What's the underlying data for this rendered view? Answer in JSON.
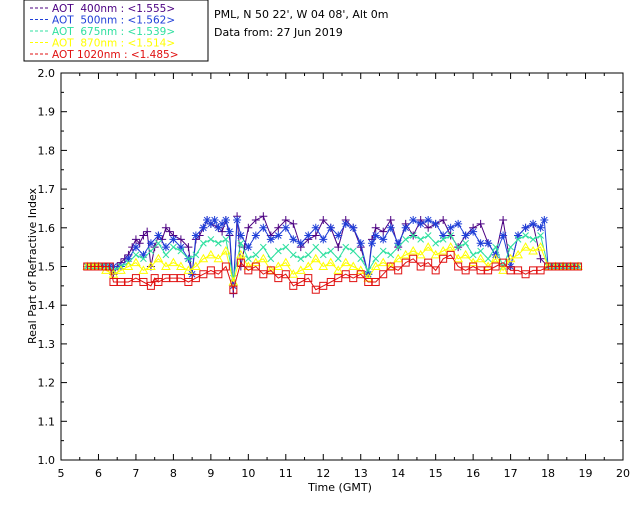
{
  "chart_data": {
    "type": "line",
    "site": "PML, N 50 22', W 04 08', Alt 0m",
    "date_text": "Data from: 27 Jun 2019",
    "xlabel": "Time (GMT)",
    "ylabel": "Real Part of Refractive Index",
    "xlim": [
      5,
      20
    ],
    "ylim": [
      1.0,
      2.0
    ],
    "xticks": [
      "5",
      "6",
      "7",
      "8",
      "9",
      "10",
      "11",
      "12",
      "13",
      "14",
      "15",
      "16",
      "17",
      "18",
      "19",
      "20"
    ],
    "yticks": [
      "1.0",
      "1.1",
      "1.2",
      "1.3",
      "1.4",
      "1.5",
      "1.6",
      "1.7",
      "1.8",
      "1.9",
      "2.0"
    ],
    "legend_position": "top-left",
    "series": [
      {
        "name": "AOT  400nm : <1.555>",
        "color": "#4b0082",
        "marker": "plus",
        "x": [
          5.7,
          5.8,
          5.9,
          6.0,
          6.1,
          6.2,
          6.3,
          6.4,
          6.5,
          6.6,
          6.7,
          6.8,
          6.9,
          7.0,
          7.1,
          7.2,
          7.3,
          7.4,
          7.5,
          7.6,
          7.7,
          7.8,
          7.9,
          8.0,
          8.2,
          8.4,
          8.5,
          8.6,
          8.7,
          8.8,
          8.9,
          9.0,
          9.2,
          9.3,
          9.4,
          9.5,
          9.6,
          9.7,
          9.8,
          9.9,
          10.0,
          10.2,
          10.4,
          10.6,
          10.8,
          11.0,
          11.2,
          11.4,
          11.6,
          11.8,
          12.0,
          12.2,
          12.4,
          12.6,
          12.8,
          13.0,
          13.2,
          13.3,
          13.4,
          13.6,
          13.8,
          14.0,
          14.2,
          14.4,
          14.6,
          14.8,
          15.0,
          15.2,
          15.4,
          15.6,
          15.8,
          16.0,
          16.2,
          16.4,
          16.6,
          16.8,
          17.0,
          17.2,
          17.4,
          17.6,
          17.8,
          18.0,
          18.1,
          18.2,
          18.3,
          18.4,
          18.5,
          18.6,
          18.7,
          18.8
        ],
        "y": [
          1.5,
          1.5,
          1.5,
          1.5,
          1.5,
          1.5,
          1.5,
          1.48,
          1.5,
          1.51,
          1.52,
          1.53,
          1.55,
          1.57,
          1.56,
          1.58,
          1.59,
          1.5,
          1.55,
          1.58,
          1.57,
          1.6,
          1.59,
          1.58,
          1.57,
          1.55,
          1.48,
          1.57,
          1.58,
          1.6,
          1.62,
          1.61,
          1.6,
          1.59,
          1.62,
          1.58,
          1.43,
          1.63,
          1.5,
          1.55,
          1.6,
          1.62,
          1.63,
          1.58,
          1.6,
          1.62,
          1.61,
          1.55,
          1.57,
          1.58,
          1.62,
          1.6,
          1.55,
          1.62,
          1.6,
          1.55,
          1.48,
          1.57,
          1.6,
          1.59,
          1.62,
          1.55,
          1.61,
          1.58,
          1.62,
          1.6,
          1.61,
          1.62,
          1.58,
          1.55,
          1.58,
          1.6,
          1.61,
          1.56,
          1.53,
          1.62,
          1.5,
          1.58,
          1.6,
          1.61,
          1.52,
          1.5,
          1.5,
          1.5,
          1.5,
          1.5,
          1.5,
          1.5,
          1.5,
          1.5
        ]
      },
      {
        "name": "AOT  500nm : <1.562>",
        "color": "#1f3fd8",
        "marker": "star",
        "x": [
          5.7,
          5.8,
          5.9,
          6.0,
          6.1,
          6.2,
          6.3,
          6.4,
          6.6,
          6.8,
          7.0,
          7.2,
          7.4,
          7.6,
          7.8,
          8.0,
          8.2,
          8.4,
          8.5,
          8.6,
          8.8,
          8.9,
          9.0,
          9.1,
          9.2,
          9.3,
          9.4,
          9.5,
          9.6,
          9.7,
          9.8,
          10.0,
          10.2,
          10.4,
          10.6,
          10.8,
          11.0,
          11.2,
          11.4,
          11.6,
          11.8,
          12.0,
          12.2,
          12.4,
          12.6,
          12.8,
          13.0,
          13.2,
          13.3,
          13.4,
          13.6,
          13.8,
          14.0,
          14.2,
          14.4,
          14.6,
          14.8,
          15.0,
          15.2,
          15.4,
          15.6,
          15.8,
          16.0,
          16.2,
          16.4,
          16.6,
          16.8,
          17.0,
          17.2,
          17.4,
          17.6,
          17.8,
          17.9,
          18.0,
          18.1,
          18.2,
          18.3,
          18.4,
          18.5,
          18.6,
          18.7,
          18.8
        ],
        "y": [
          1.5,
          1.5,
          1.5,
          1.5,
          1.5,
          1.5,
          1.5,
          1.5,
          1.5,
          1.52,
          1.55,
          1.53,
          1.56,
          1.58,
          1.55,
          1.57,
          1.55,
          1.52,
          1.48,
          1.58,
          1.6,
          1.62,
          1.61,
          1.62,
          1.6,
          1.61,
          1.62,
          1.59,
          1.45,
          1.62,
          1.58,
          1.55,
          1.58,
          1.6,
          1.57,
          1.58,
          1.6,
          1.57,
          1.56,
          1.58,
          1.6,
          1.57,
          1.6,
          1.58,
          1.61,
          1.6,
          1.56,
          1.48,
          1.56,
          1.58,
          1.57,
          1.6,
          1.56,
          1.6,
          1.62,
          1.61,
          1.62,
          1.61,
          1.58,
          1.6,
          1.61,
          1.58,
          1.59,
          1.56,
          1.56,
          1.53,
          1.58,
          1.5,
          1.58,
          1.6,
          1.61,
          1.6,
          1.62,
          1.5,
          1.5,
          1.5,
          1.5,
          1.5,
          1.5,
          1.5,
          1.5,
          1.5
        ]
      },
      {
        "name": "AOT  675nm : <1.539>",
        "color": "#30e0a0",
        "marker": "x",
        "x": [
          5.7,
          5.8,
          5.9,
          6.0,
          6.2,
          6.4,
          6.6,
          6.8,
          7.0,
          7.2,
          7.4,
          7.6,
          7.8,
          8.0,
          8.2,
          8.4,
          8.6,
          8.8,
          9.0,
          9.2,
          9.4,
          9.6,
          9.8,
          10.0,
          10.2,
          10.4,
          10.6,
          10.8,
          11.0,
          11.2,
          11.4,
          11.6,
          11.8,
          12.0,
          12.2,
          12.4,
          12.6,
          12.8,
          13.0,
          13.2,
          13.4,
          13.6,
          13.8,
          14.0,
          14.2,
          14.4,
          14.6,
          14.8,
          15.0,
          15.2,
          15.4,
          15.6,
          15.8,
          16.0,
          16.2,
          16.4,
          16.6,
          16.8,
          17.0,
          17.2,
          17.4,
          17.6,
          17.8,
          18.0,
          18.2,
          18.4,
          18.6,
          18.8
        ],
        "y": [
          1.5,
          1.5,
          1.5,
          1.5,
          1.5,
          1.49,
          1.5,
          1.51,
          1.53,
          1.52,
          1.54,
          1.56,
          1.53,
          1.55,
          1.54,
          1.52,
          1.53,
          1.56,
          1.57,
          1.56,
          1.57,
          1.47,
          1.56,
          1.52,
          1.53,
          1.55,
          1.52,
          1.54,
          1.55,
          1.53,
          1.52,
          1.53,
          1.55,
          1.53,
          1.54,
          1.52,
          1.55,
          1.54,
          1.52,
          1.49,
          1.52,
          1.54,
          1.53,
          1.55,
          1.57,
          1.58,
          1.57,
          1.58,
          1.56,
          1.57,
          1.58,
          1.55,
          1.56,
          1.53,
          1.54,
          1.52,
          1.55,
          1.5,
          1.55,
          1.57,
          1.58,
          1.57,
          1.58,
          1.5,
          1.5,
          1.5,
          1.5,
          1.5
        ]
      },
      {
        "name": "AOT  870nm : <1.514>",
        "color": "#ffff00",
        "marker": "triangle",
        "x": [
          5.7,
          5.8,
          5.9,
          6.0,
          6.2,
          6.4,
          6.6,
          6.8,
          7.0,
          7.2,
          7.4,
          7.6,
          7.8,
          8.0,
          8.2,
          8.4,
          8.6,
          8.8,
          9.0,
          9.2,
          9.4,
          9.6,
          9.8,
          10.0,
          10.2,
          10.4,
          10.6,
          10.8,
          11.0,
          11.2,
          11.4,
          11.6,
          11.8,
          12.0,
          12.2,
          12.4,
          12.6,
          12.8,
          13.0,
          13.2,
          13.4,
          13.6,
          13.8,
          14.0,
          14.2,
          14.4,
          14.6,
          14.8,
          15.0,
          15.2,
          15.4,
          15.6,
          15.8,
          16.0,
          16.2,
          16.4,
          16.6,
          16.8,
          17.0,
          17.2,
          17.4,
          17.6,
          17.8,
          18.0,
          18.2,
          18.4,
          18.6,
          18.8
        ],
        "y": [
          1.5,
          1.5,
          1.5,
          1.5,
          1.49,
          1.48,
          1.49,
          1.5,
          1.51,
          1.49,
          1.5,
          1.52,
          1.5,
          1.51,
          1.5,
          1.49,
          1.5,
          1.52,
          1.53,
          1.52,
          1.54,
          1.46,
          1.53,
          1.5,
          1.51,
          1.52,
          1.49,
          1.5,
          1.51,
          1.48,
          1.49,
          1.5,
          1.52,
          1.5,
          1.51,
          1.49,
          1.51,
          1.5,
          1.49,
          1.47,
          1.5,
          1.51,
          1.5,
          1.52,
          1.53,
          1.54,
          1.53,
          1.55,
          1.53,
          1.54,
          1.55,
          1.52,
          1.53,
          1.51,
          1.52,
          1.5,
          1.52,
          1.49,
          1.52,
          1.53,
          1.55,
          1.54,
          1.55,
          1.5,
          1.5,
          1.5,
          1.5,
          1.5
        ]
      },
      {
        "name": "AOT 1020nm : <1.485>",
        "color": "#e01010",
        "marker": "square",
        "x": [
          5.7,
          5.8,
          5.9,
          6.0,
          6.1,
          6.2,
          6.3,
          6.4,
          6.6,
          6.8,
          7.0,
          7.2,
          7.4,
          7.5,
          7.6,
          7.8,
          8.0,
          8.2,
          8.4,
          8.6,
          8.8,
          9.0,
          9.2,
          9.4,
          9.6,
          9.8,
          10.0,
          10.2,
          10.4,
          10.6,
          10.8,
          11.0,
          11.2,
          11.4,
          11.6,
          11.8,
          12.0,
          12.2,
          12.4,
          12.6,
          12.8,
          13.0,
          13.2,
          13.4,
          13.6,
          13.8,
          14.0,
          14.2,
          14.4,
          14.6,
          14.8,
          15.0,
          15.2,
          15.4,
          15.6,
          15.8,
          16.0,
          16.2,
          16.4,
          16.6,
          16.8,
          17.0,
          17.2,
          17.4,
          17.6,
          17.8,
          18.0,
          18.1,
          18.2,
          18.3,
          18.4,
          18.5,
          18.6,
          18.7,
          18.8
        ],
        "y": [
          1.5,
          1.5,
          1.5,
          1.5,
          1.5,
          1.5,
          1.5,
          1.46,
          1.46,
          1.46,
          1.47,
          1.46,
          1.45,
          1.47,
          1.46,
          1.47,
          1.47,
          1.47,
          1.46,
          1.47,
          1.48,
          1.49,
          1.48,
          1.5,
          1.44,
          1.51,
          1.49,
          1.5,
          1.48,
          1.49,
          1.47,
          1.48,
          1.45,
          1.46,
          1.47,
          1.44,
          1.45,
          1.46,
          1.47,
          1.48,
          1.47,
          1.48,
          1.46,
          1.46,
          1.48,
          1.5,
          1.49,
          1.51,
          1.52,
          1.5,
          1.51,
          1.49,
          1.52,
          1.53,
          1.5,
          1.49,
          1.5,
          1.49,
          1.49,
          1.5,
          1.51,
          1.49,
          1.49,
          1.48,
          1.49,
          1.49,
          1.5,
          1.5,
          1.5,
          1.5,
          1.5,
          1.5,
          1.5,
          1.5,
          1.5
        ]
      }
    ]
  }
}
